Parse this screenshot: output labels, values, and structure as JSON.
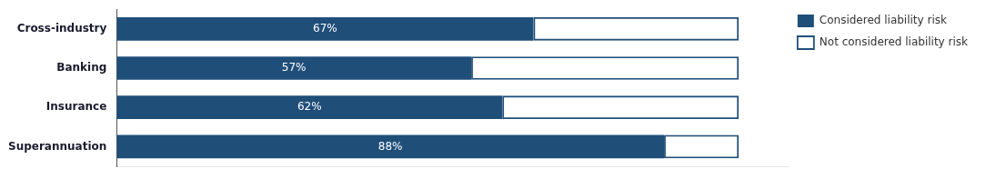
{
  "chart_data": {
    "type": "bar",
    "orientation": "horizontal",
    "stacked": true,
    "categories": [
      "Cross-industry",
      "Banking",
      "Insurance",
      "Superannuation"
    ],
    "series": [
      {
        "name": "Considered liability risk",
        "color": "#1f4e79",
        "values": [
          67,
          57,
          62,
          88
        ],
        "value_labels": [
          "67%",
          "57%",
          "62%",
          "88%"
        ],
        "data_labels": true,
        "line_style": "solid"
      },
      {
        "name": "Not considered liability risk",
        "color": "#1f4e79",
        "values": [
          33,
          43,
          38,
          12
        ],
        "line_style": "dashed"
      }
    ],
    "xlim": [
      0,
      108
    ],
    "tick_labels": "y",
    "grid": false,
    "legend": "upper right"
  }
}
